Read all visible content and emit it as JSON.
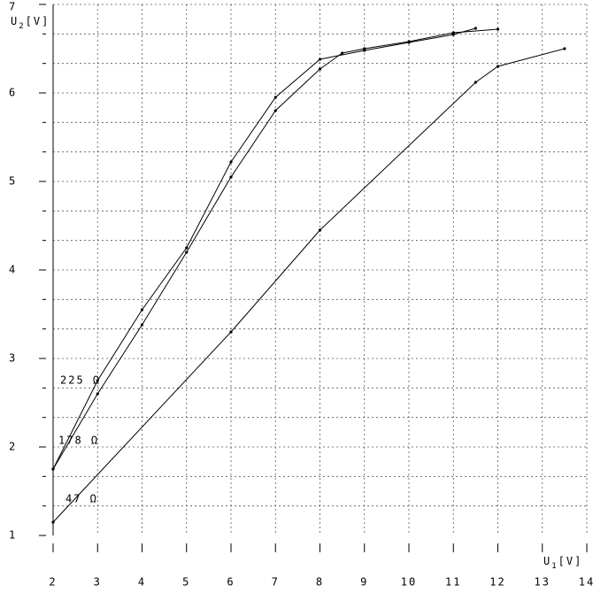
{
  "chart_data": {
    "type": "line",
    "ylabel_symbol": "U",
    "ylabel_index": "2",
    "ylabel_unit": "[V]",
    "xlabel_symbol": "U",
    "xlabel_index": "1",
    "xlabel_unit": "[V]",
    "xlim": [
      2,
      14
    ],
    "xticks": [
      2,
      3,
      4,
      5,
      6,
      7,
      8,
      9,
      10,
      11,
      12,
      13,
      14
    ],
    "ylim": [
      1,
      7
    ],
    "yticks": [
      1,
      2,
      3,
      4,
      5,
      6,
      7
    ],
    "grid": true,
    "color": "#000000",
    "series": [
      {
        "name": "225 Ω",
        "color": "#000000",
        "x": [
          2,
          3,
          4,
          5,
          6,
          7,
          8,
          9,
          10,
          11,
          11.5
        ],
        "values": [
          1.75,
          2.75,
          3.55,
          4.25,
          5.22,
          5.95,
          6.38,
          6.48,
          6.57,
          6.66,
          6.73
        ]
      },
      {
        "name": "178 Ω",
        "color": "#000000",
        "x": [
          2,
          3,
          4,
          5,
          6,
          7,
          8,
          8.5,
          9,
          10,
          11,
          12
        ],
        "values": [
          1.75,
          2.6,
          3.38,
          4.2,
          5.05,
          5.8,
          6.27,
          6.45,
          6.5,
          6.58,
          6.68,
          6.72
        ]
      },
      {
        "name": "47 Ω",
        "color": "#000000",
        "x": [
          2,
          6,
          8,
          11.5,
          12,
          13.5
        ],
        "values": [
          1.15,
          3.3,
          4.45,
          6.12,
          6.3,
          6.5
        ]
      }
    ]
  }
}
